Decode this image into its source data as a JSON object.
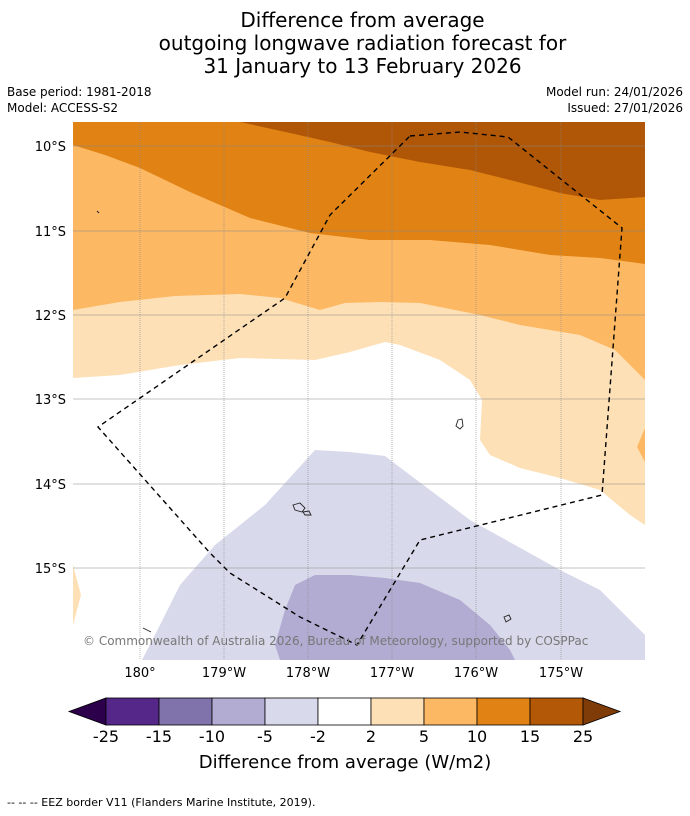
{
  "title": {
    "line1": "Difference from average",
    "line2": "outgoing longwave radiation forecast for",
    "line3": "31 January to 13 February 2026"
  },
  "meta": {
    "base_period": "Base period: 1981-2018",
    "model": "Model: ACCESS-S2",
    "model_run": "Model run: 24/01/2026",
    "issued": "Issued: 27/01/2026"
  },
  "map": {
    "lat_labels": [
      "10°S",
      "11°S",
      "12°S",
      "13°S",
      "14°S",
      "15°S"
    ],
    "lon_labels": [
      "180°",
      "179°W",
      "178°W",
      "177°W",
      "176°W",
      "175°W"
    ],
    "copyright": "© Commonwealth of Australia 2026, Bureau of Meteorology, supported by COSPPac",
    "colors": {
      "c_25_15": "#b05707",
      "c_15_10": "#e08214",
      "c_10_5": "#fdb863",
      "c_5_2": "#fee0b6",
      "c_2_m2": "#ffffff",
      "c_m2_m5": "#d8daeb",
      "c_m5_m10": "#b2abd2"
    }
  },
  "colorbar": {
    "ticks": [
      "-25",
      "-15",
      "-10",
      "-5",
      "-2",
      "2",
      "5",
      "10",
      "15",
      "25"
    ],
    "colors": [
      "#542788",
      "#8073ac",
      "#b2abd2",
      "#d8daeb",
      "#ffffff",
      "#fee0b6",
      "#fdb863",
      "#e08214",
      "#b35806"
    ],
    "under_color": "#2d004b",
    "over_color": "#7f3b08",
    "label": "Difference from average (W/m2)"
  },
  "footnote": "--  --  -- EEZ border V11 (Flanders Marine Institute, 2019)."
}
